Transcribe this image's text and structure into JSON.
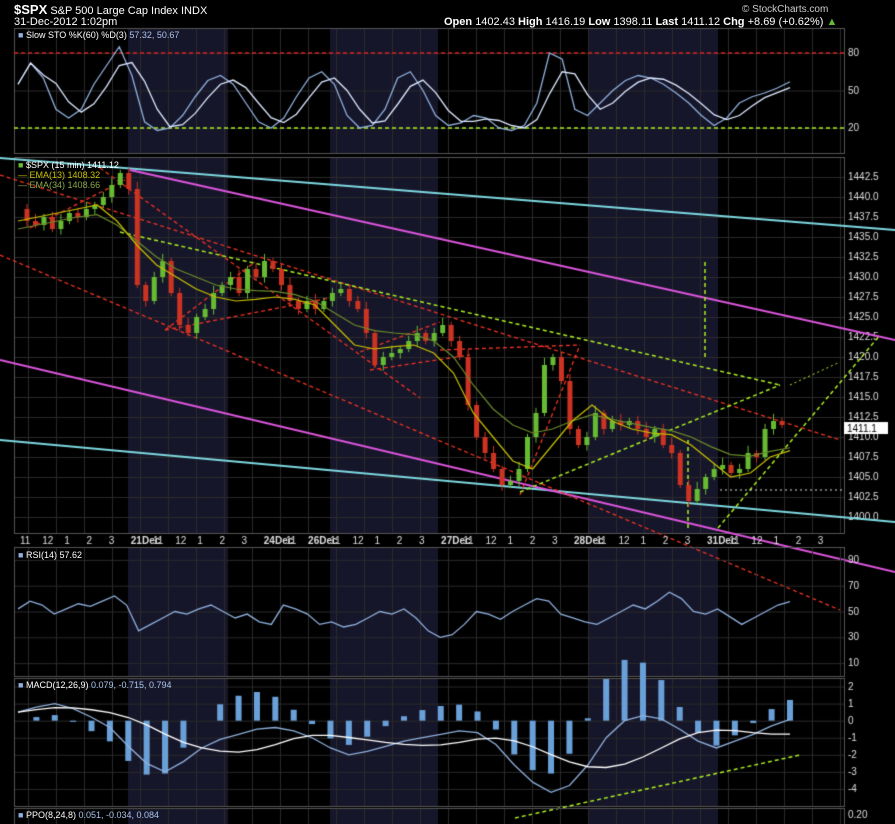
{
  "header": {
    "symbol": "$SPX",
    "name": "S&P 500 Large Cap Index",
    "exchange": "INDX",
    "datetime": "31-Dec-2012 1:02pm",
    "copyright": "© StockCharts.com",
    "open_label": "Open",
    "open": "1402.43",
    "high_label": "High",
    "high": "1416.19",
    "low_label": "Low",
    "low": "1398.11",
    "last_label": "Last",
    "last": "1411.12",
    "chg_label": "Chg",
    "chg": "+8.69 (+0.62%)"
  },
  "colors": {
    "background": "#000000",
    "panel_bg": "#000000",
    "session_shade": "#16162a",
    "grid": "#2a2a2a",
    "border": "#555555",
    "up": "#66bb33",
    "down": "#cc3322",
    "ema13": "#c8c000",
    "ema34": "#6b8a2a",
    "sto": "#8fb0dd",
    "sto_signal": "#dde8ff",
    "sto_red": "#dd2222",
    "sto_green": "#aaee22",
    "cyan_line": "#7dd8e0",
    "magenta_line": "#dd55dd",
    "red_dash": "#ee3322",
    "green_dash": "#aaee22",
    "macd_hist": "#6aa0d8",
    "white_dash": "#dddddd",
    "text": "#ffffff",
    "axis_text": "#dddddd"
  },
  "panels": {
    "sto": {
      "label": "Slow STO %K(60) %D(3)",
      "values": "57.32, 50.67",
      "ticks": [
        "80",
        "50",
        "20"
      ]
    },
    "price": {
      "label": "$SPX (15 min)",
      "last": "1411.12",
      "ema13_label": "EMA(13)",
      "ema13_value": "1408.32",
      "ema34_label": "EMA(34)",
      "ema34_value": "1408.66",
      "ticks": [
        "1442.5",
        "1440.0",
        "1437.5",
        "1435.0",
        "1432.5",
        "1430.0",
        "1427.5",
        "1425.0",
        "1422.5",
        "1420.0",
        "1417.5",
        "1415.0",
        "1412.5",
        "1410.0",
        "1407.5",
        "1405.0",
        "1402.5",
        "1400.0"
      ]
    },
    "rsi": {
      "label": "RSI(14)",
      "value": "57.62",
      "ticks": [
        "90",
        "70",
        "50",
        "30",
        "10"
      ]
    },
    "macd": {
      "label": "MACD(12,26,9)",
      "values": "0.079, -0.715, 0.794",
      "ticks": [
        "2",
        "1",
        "0",
        "-1",
        "-2",
        "-3",
        "-4"
      ]
    },
    "ppo": {
      "label": "PPO(8,24,8)",
      "values": "0.051, -0.034, 0.084",
      "tick": "0.20"
    }
  },
  "x_axis": {
    "labels": [
      "11",
      "12",
      "1",
      "2",
      "3",
      "21Dec",
      "11",
      "12",
      "1",
      "2",
      "3",
      "24Dec",
      "11",
      "26Dec",
      "11",
      "12",
      "1",
      "2",
      "3",
      "27Dec",
      "11",
      "12",
      "1",
      "2",
      "3",
      "28Dec",
      "11",
      "12",
      "1",
      "2",
      "3",
      "31Dec",
      "11",
      "12",
      "1",
      "2",
      "3"
    ]
  },
  "chart_data": {
    "type": "candlestick",
    "title": "$SPX S&P 500 Large Cap Index INDX",
    "interval": "15 min",
    "sessions": [
      "21Dec",
      "24Dec",
      "26Dec",
      "27Dec",
      "28Dec",
      "31Dec"
    ],
    "ylim": [
      1398,
      1445
    ],
    "ohlc_summary": {
      "open": 1402.43,
      "high": 1416.19,
      "low": 1398.11,
      "last": 1411.12
    },
    "price_path": [
      1438.5,
      1437,
      1436.5,
      1437.5,
      1436,
      1437,
      1438,
      1437.5,
      1438.5,
      1439,
      1440,
      1441.5,
      1443,
      1441,
      1429,
      1427,
      1430,
      1432,
      1428,
      1424,
      1423,
      1425,
      1426,
      1428,
      1429,
      1430,
      1428,
      1431,
      1430,
      1432,
      1431,
      1429,
      1427,
      1426,
      1427,
      1426,
      1427,
      1428,
      1428.5,
      1427,
      1426,
      1423,
      1419,
      1420,
      1420.5,
      1421,
      1422,
      1423,
      1422,
      1423,
      1424,
      1422,
      1420,
      1414,
      1410,
      1408,
      1406,
      1404,
      1404.5,
      1406,
      1410,
      1413,
      1419,
      1420,
      1417,
      1411,
      1409,
      1410,
      1413,
      1411,
      1412,
      1411.5,
      1412,
      1411,
      1410,
      1411,
      1409,
      1408,
      1404,
      1402,
      1403.5,
      1405,
      1406,
      1406.5,
      1405.5,
      1406,
      1408,
      1407.5,
      1411,
      1412,
      1411.5
    ],
    "ema13": [
      1437,
      1437.5,
      1438,
      1438.5,
      1439,
      1437,
      1434,
      1431.5,
      1430,
      1428.5,
      1427.5,
      1427,
      1427.2,
      1427.5,
      1427.2,
      1426.5,
      1424,
      1421.5,
      1421,
      1421.3,
      1421.5,
      1420.5,
      1418,
      1413,
      1410,
      1407,
      1406,
      1409,
      1412,
      1414,
      1412,
      1411,
      1410.5,
      1410.3,
      1409,
      1407,
      1405,
      1405.5,
      1407.5,
      1408.3
    ],
    "ema34": [
      1436,
      1436.5,
      1437,
      1437.5,
      1437.8,
      1436.5,
      1434.5,
      1432.5,
      1431,
      1430,
      1429,
      1428.5,
      1428.3,
      1428.2,
      1427.8,
      1427,
      1425.5,
      1424,
      1423.3,
      1423,
      1422.8,
      1422,
      1420,
      1416.5,
      1413.5,
      1411.5,
      1410.5,
      1411,
      1412,
      1412.8,
      1412.2,
      1411.7,
      1411.2,
      1410.8,
      1410,
      1408.8,
      1407.8,
      1407.6,
      1408.2,
      1408.66
    ],
    "slow_sto": {
      "k": 57.32,
      "d": 50.67,
      "overbought": 80,
      "oversold": 20
    },
    "rsi": {
      "value": 57.62,
      "ylim": [
        0,
        100
      ]
    },
    "macd": {
      "macd": 0.079,
      "signal": -0.715,
      "histogram": 0.794,
      "ylim": [
        -5,
        2.5
      ]
    },
    "ppo": {
      "ppo": 0.051,
      "signal": -0.034,
      "histogram": 0.084
    }
  }
}
